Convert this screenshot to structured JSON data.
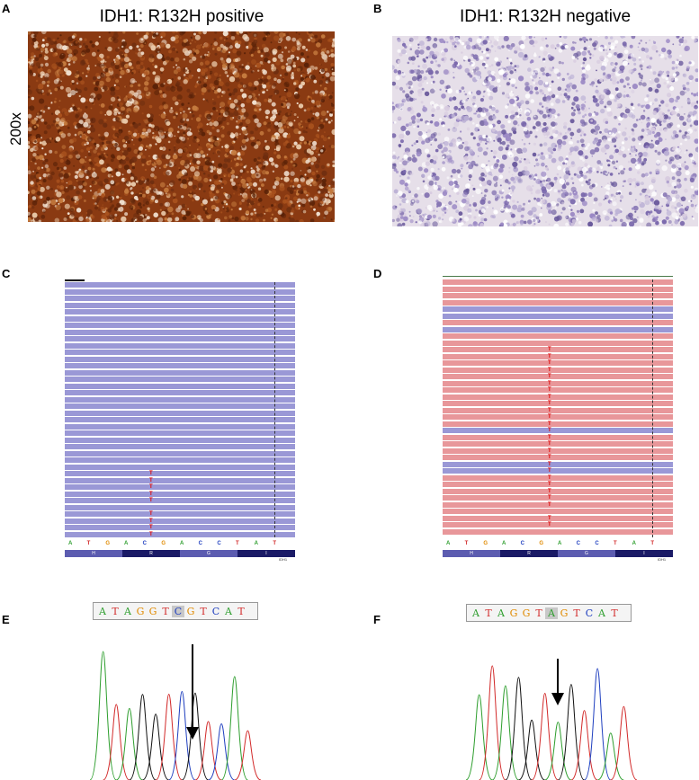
{
  "panels": {
    "A": {
      "letter": "A",
      "title": "IDH1: R132H positive",
      "magnification": "200x"
    },
    "B": {
      "letter": "B",
      "title": "IDH1: R132H negative"
    },
    "C": {
      "letter": "C"
    },
    "D": {
      "letter": "D"
    },
    "E": {
      "letter": "E"
    },
    "F": {
      "letter": "F"
    }
  },
  "reference": {
    "bases": [
      "A",
      "T",
      "G",
      "A",
      "C",
      "G",
      "A",
      "C",
      "C",
      "T",
      "A",
      "T"
    ],
    "amino_acids": [
      "H",
      "R",
      "G",
      "I"
    ],
    "gene": "IDH1"
  },
  "sanger_E": {
    "bases": [
      "A",
      "T",
      "A",
      "G",
      "G",
      "T",
      "C",
      "G",
      "T",
      "C",
      "A",
      "T"
    ]
  },
  "sanger_F": {
    "bases": [
      "A",
      "T",
      "A",
      "G",
      "G",
      "T",
      "A",
      "G",
      "T",
      "C",
      "A",
      "T"
    ]
  },
  "colors": {
    "base_A": "#2e9e2e",
    "base_T": "#d22a2a",
    "base_G": "#e08a00",
    "base_C": "#1f3fbf",
    "read_forward": "#9a98d6",
    "read_reverse": "#e8979a",
    "mismatch": "#e00000",
    "dab_brown": "#8a3a12",
    "hematoxylin": "#9a88c4",
    "aa_dark": "#1a1a66",
    "aa_light": "#5c5cb0"
  }
}
